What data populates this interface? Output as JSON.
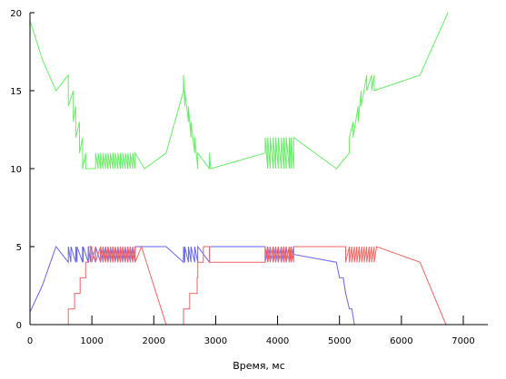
{
  "chart_data": {
    "type": "line",
    "title": "",
    "xlabel": "Время, мс",
    "ylabel": "",
    "xlim": [
      0,
      7000
    ],
    "ylim": [
      0,
      20
    ],
    "xticks": [
      "0",
      "1000",
      "2000",
      "3000",
      "4000",
      "5000",
      "6000",
      "7000"
    ],
    "yticks": [
      "0",
      "5",
      "10",
      "15",
      "20"
    ],
    "grid": false,
    "series": [
      {
        "color": "#66ee66",
        "x": [
          0,
          200,
          420,
          620,
          620,
          700,
          700,
          740,
          740,
          800,
          800,
          850,
          850,
          900,
          900,
          1060,
          1060,
          1100,
          1100,
          1140,
          1140,
          1180,
          1180,
          1220,
          1220,
          1260,
          1260,
          1300,
          1300,
          1340,
          1340,
          1380,
          1380,
          1420,
          1420,
          1460,
          1460,
          1500,
          1500,
          1540,
          1540,
          1580,
          1580,
          1620,
          1620,
          1660,
          1660,
          1700,
          1700,
          1850,
          2200,
          2480,
          2480,
          2500,
          2500,
          2560,
          2560,
          2600,
          2600,
          2660,
          2660,
          2710,
          2710,
          2900,
          2900,
          2920,
          3800,
          3800,
          3840,
          3840,
          3880,
          3880,
          3930,
          3930,
          3970,
          3970,
          4010,
          4010,
          4060,
          4060,
          4100,
          4100,
          4140,
          4140,
          4190,
          4190,
          4220,
          4220,
          4260,
          4260,
          4950,
          5160,
          5160,
          5220,
          5220,
          5300,
          5300,
          5350,
          5350,
          5440,
          5440,
          5520,
          5520,
          5560,
          5560,
          6300,
          6750
        ],
        "y": [
          19.5,
          17,
          15,
          16,
          14,
          15,
          13,
          14,
          12,
          13,
          11,
          12,
          10,
          11,
          10,
          10,
          11,
          10,
          11,
          10,
          11,
          10,
          11,
          10,
          11,
          10,
          11,
          10,
          11,
          10,
          11,
          10,
          11,
          10,
          11,
          10,
          11,
          10,
          11,
          10,
          11,
          10,
          11,
          10,
          11,
          10,
          11,
          10,
          11,
          10,
          11,
          15,
          16,
          14,
          15,
          13,
          14,
          12,
          13,
          11,
          12,
          10,
          11,
          10,
          11,
          10,
          11,
          12,
          10,
          12,
          10,
          12,
          10,
          12,
          10,
          12,
          10,
          12,
          10,
          12,
          10,
          12,
          10,
          12,
          10,
          12,
          10,
          12,
          10,
          12,
          10,
          11,
          12,
          13,
          12,
          14,
          13,
          15,
          14,
          16,
          15,
          16,
          15,
          16,
          15,
          16,
          20
        ]
      },
      {
        "color": "#6666ee",
        "x": [
          0,
          200,
          420,
          620,
          620,
          660,
          660,
          740,
          740,
          760,
          760,
          850,
          850,
          860,
          860,
          940,
          940,
          980,
          980,
          1060,
          1060,
          1140,
          1140,
          1180,
          1180,
          1220,
          1220,
          1260,
          1260,
          1300,
          1300,
          1340,
          1340,
          1380,
          1380,
          1420,
          1420,
          1460,
          1460,
          1500,
          1500,
          1540,
          1540,
          1580,
          1580,
          1620,
          1620,
          1660,
          1660,
          1700,
          1700,
          2200,
          2480,
          2480,
          2500,
          2500,
          2560,
          2560,
          2600,
          2600,
          2660,
          2660,
          2710,
          2710,
          2900,
          2900,
          2920,
          3800,
          3800,
          3840,
          3840,
          3880,
          3880,
          3930,
          3930,
          3970,
          3970,
          4010,
          4010,
          4060,
          4060,
          4100,
          4100,
          4140,
          4140,
          4190,
          4190,
          4220,
          4220,
          4260,
          4260,
          4950,
          5000,
          5060,
          5100,
          5160,
          5200,
          5240,
          5300,
          5380,
          5400
        ],
        "y": [
          0.8,
          2.5,
          5,
          4,
          5,
          4,
          5,
          4,
          5,
          4,
          5,
          4,
          5,
          4,
          5,
          4,
          5,
          4,
          5,
          4,
          5,
          4,
          5,
          4,
          5,
          4,
          5,
          4,
          5,
          4,
          5,
          4,
          5,
          4,
          5,
          4,
          5,
          4,
          5,
          4,
          5,
          4,
          5,
          4,
          5,
          4,
          5,
          4,
          5,
          4,
          5,
          5,
          4,
          5,
          4,
          5,
          4,
          5,
          4,
          5,
          4,
          5,
          4,
          5,
          4,
          5,
          5,
          5,
          4,
          5,
          4,
          5,
          4,
          5,
          4,
          5,
          4,
          5,
          4,
          5,
          4,
          5,
          4,
          5,
          4,
          5,
          4,
          5,
          4,
          5,
          4.5,
          4,
          3,
          3,
          2,
          1,
          1,
          0,
          0,
          0,
          0
        ]
      },
      {
        "color": "#ee6666",
        "x": [
          0,
          620,
          620,
          720,
          720,
          810,
          810,
          900,
          900,
          950,
          950,
          1000,
          1000,
          1060,
          1060,
          1140,
          1140,
          1180,
          1180,
          1220,
          1220,
          1260,
          1260,
          1300,
          1300,
          1340,
          1340,
          1380,
          1380,
          1420,
          1420,
          1460,
          1460,
          1500,
          1500,
          1540,
          1540,
          1580,
          1580,
          1620,
          1620,
          1660,
          1660,
          1700,
          1700,
          1800,
          2200,
          2480,
          2480,
          2580,
          2580,
          2700,
          2700,
          2710,
          2710,
          2800,
          2800,
          2900,
          2900,
          3800,
          3800,
          3840,
          3840,
          3880,
          3880,
          3930,
          3930,
          3970,
          3970,
          4010,
          4010,
          4060,
          4060,
          4100,
          4100,
          4140,
          4140,
          4190,
          4190,
          4220,
          4220,
          4260,
          4260,
          5100,
          5100,
          5160,
          5160,
          5200,
          5200,
          5240,
          5240,
          5280,
          5280,
          5320,
          5320,
          5360,
          5360,
          5400,
          5400,
          5440,
          5440,
          5480,
          5480,
          5520,
          5520,
          5560,
          5560,
          5600,
          6300,
          6720
        ],
        "y": [
          0,
          0,
          1,
          1,
          2,
          2,
          3,
          3,
          4,
          4,
          5,
          5,
          4,
          5,
          4,
          5,
          4,
          5,
          4,
          5,
          4,
          5,
          4,
          5,
          4,
          5,
          4,
          5,
          4,
          5,
          4,
          5,
          4,
          5,
          4,
          5,
          4,
          5,
          4,
          5,
          4,
          5,
          4,
          5,
          4,
          5,
          0,
          0,
          1,
          1,
          2,
          2,
          3,
          3,
          4,
          4,
          5,
          5,
          4,
          4,
          5,
          4,
          5,
          4,
          5,
          4,
          5,
          4,
          5,
          4,
          5,
          4,
          5,
          4,
          5,
          4,
          5,
          4,
          5,
          4,
          5,
          4,
          5,
          5,
          4,
          5,
          4,
          5,
          4,
          5,
          4,
          5,
          4,
          5,
          4,
          5,
          4,
          5,
          4,
          5,
          4,
          5,
          4,
          5,
          4,
          5,
          4,
          5,
          4,
          0
        ]
      }
    ]
  }
}
